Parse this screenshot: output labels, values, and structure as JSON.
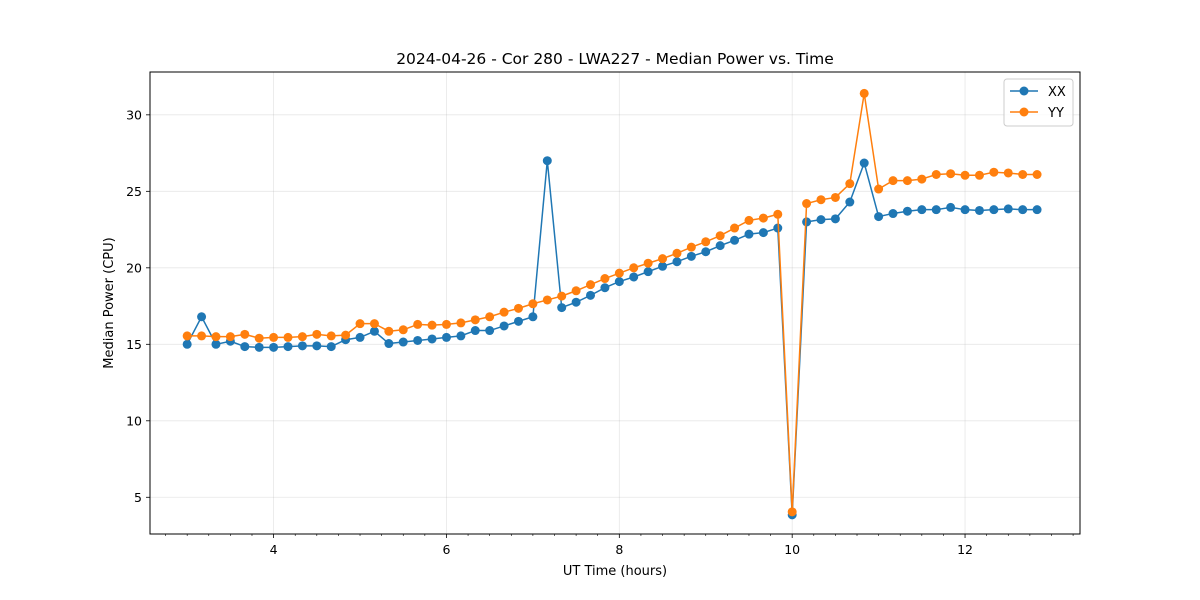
{
  "chart_data": {
    "type": "line",
    "title": "2024-04-26 - Cor 280 - LWA227 - Median Power vs. Time",
    "xlabel": "UT Time (hours)",
    "ylabel": "Median Power (CPU)",
    "xlim": [
      2.57,
      13.33
    ],
    "ylim": [
      2.6,
      32.8
    ],
    "x_ticks": [
      4,
      6,
      8,
      10,
      12
    ],
    "x_tick_labels": [
      "4",
      "6",
      "8",
      "10",
      "12"
    ],
    "x_minor_step": 0.25,
    "y_ticks": [
      5,
      10,
      15,
      20,
      25,
      30
    ],
    "y_tick_labels": [
      "5",
      "10",
      "15",
      "20",
      "25",
      "30"
    ],
    "grid": true,
    "legend_position": "top-right",
    "x": [
      3.0,
      3.1667,
      3.3333,
      3.5,
      3.6667,
      3.8333,
      4.0,
      4.1667,
      4.3333,
      4.5,
      4.6667,
      4.8333,
      5.0,
      5.1667,
      5.3333,
      5.5,
      5.6667,
      5.8333,
      6.0,
      6.1667,
      6.3333,
      6.5,
      6.6667,
      6.8333,
      7.0,
      7.1667,
      7.3333,
      7.5,
      7.6667,
      7.8333,
      8.0,
      8.1667,
      8.3333,
      8.5,
      8.6667,
      8.8333,
      9.0,
      9.1667,
      9.3333,
      9.5,
      9.6667,
      9.8333,
      10.0,
      10.1667,
      10.3333,
      10.5,
      10.6667,
      10.8333,
      11.0,
      11.1667,
      11.3333,
      11.5,
      11.6667,
      11.8333,
      12.0,
      12.1667,
      12.3333,
      12.5,
      12.6667,
      12.8333
    ],
    "series": [
      {
        "name": "XX",
        "color": "#1f77b4",
        "values": [
          15.0,
          16.8,
          15.0,
          15.2,
          14.85,
          14.8,
          14.8,
          14.85,
          14.9,
          14.9,
          14.85,
          15.3,
          15.45,
          15.85,
          15.05,
          15.15,
          15.25,
          15.35,
          15.45,
          15.55,
          15.9,
          15.9,
          16.2,
          16.5,
          16.8,
          27.0,
          17.4,
          17.75,
          18.2,
          18.7,
          19.1,
          19.4,
          19.75,
          20.1,
          20.4,
          20.75,
          21.05,
          21.45,
          21.8,
          22.2,
          22.3,
          22.6,
          3.85,
          23.0,
          23.15,
          23.2,
          24.3,
          26.85,
          23.35,
          23.55,
          23.7,
          23.8,
          23.8,
          23.95,
          23.8,
          23.75,
          23.8,
          23.85,
          23.8,
          23.8
        ]
      },
      {
        "name": "YY",
        "color": "#ff7f0e",
        "values": [
          15.55,
          15.55,
          15.5,
          15.5,
          15.65,
          15.4,
          15.45,
          15.45,
          15.5,
          15.65,
          15.55,
          15.6,
          16.35,
          16.35,
          15.85,
          15.95,
          16.3,
          16.25,
          16.3,
          16.4,
          16.6,
          16.8,
          17.1,
          17.35,
          17.65,
          17.9,
          18.15,
          18.5,
          18.9,
          19.3,
          19.65,
          20.0,
          20.3,
          20.6,
          20.95,
          21.35,
          21.7,
          22.1,
          22.6,
          23.1,
          23.25,
          23.5,
          4.05,
          24.2,
          24.45,
          24.6,
          25.5,
          31.4,
          25.15,
          25.7,
          25.7,
          25.8,
          26.1,
          26.15,
          26.05,
          26.05,
          26.25,
          26.2,
          26.1,
          26.1
        ]
      }
    ]
  }
}
